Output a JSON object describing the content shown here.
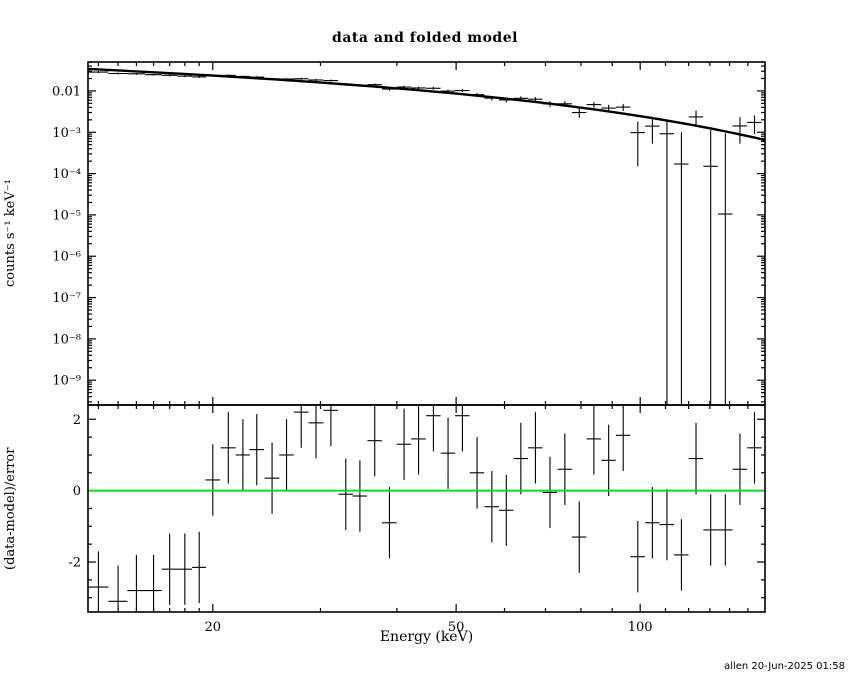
{
  "title": "data and folded model",
  "footer": "allen 20-Jun-2025 01:58",
  "x_axis_label": "Energy (keV)",
  "spectrum_axis_label": "counts s⁻¹ keV⁻¹",
  "residual_axis_label": "(data-model)/error",
  "colors": {
    "background": "#ffffff",
    "foreground": "#000000",
    "model_line": "#000000",
    "zero_line": "#00e020"
  },
  "chart_data": {
    "type": "scatter",
    "title": "data and folded model",
    "xlabel": "Energy (keV)",
    "x_scale": "log",
    "x_range": [
      12.5,
      160
    ],
    "x_major_ticks": [
      {
        "value": 20,
        "label": "20"
      },
      {
        "value": 50,
        "label": "50"
      },
      {
        "value": 100,
        "label": "100"
      }
    ],
    "x_minor_ticks": [
      13,
      14,
      15,
      16,
      17,
      18,
      19,
      30,
      40,
      60,
      70,
      80,
      90,
      110,
      120,
      130,
      140,
      150
    ],
    "energy": [
      13.0,
      14.0,
      15.0,
      16.0,
      17.0,
      18.0,
      19.0,
      20.0,
      21.2,
      22.4,
      23.6,
      25.0,
      26.4,
      27.9,
      29.5,
      31.2,
      33.0,
      34.8,
      36.8,
      38.9,
      41.1,
      43.4,
      45.9,
      48.5,
      51.2,
      54.1,
      57.2,
      60.4,
      63.8,
      67.4,
      71.2,
      75.3,
      79.5,
      84.0,
      88.8,
      93.8,
      99.1,
      104.7,
      110.6,
      116.8,
      123.4,
      130.4,
      137.8,
      145.6,
      153.8
    ],
    "energy_halfwidth": [
      0.5,
      0.5,
      0.5,
      0.5,
      0.5,
      0.5,
      0.5,
      0.55,
      0.6,
      0.6,
      0.65,
      0.7,
      0.73,
      0.77,
      0.82,
      0.86,
      0.9,
      0.95,
      1.0,
      1.07,
      1.12,
      1.19,
      1.25,
      1.32,
      1.4,
      1.47,
      1.55,
      1.64,
      1.74,
      1.83,
      1.94,
      2.05,
      2.16,
      2.28,
      2.41,
      2.55,
      2.69,
      2.84,
      3.0,
      3.17,
      3.35,
      3.54,
      3.74,
      3.95,
      4.17
    ],
    "spectrum_panel": {
      "ylabel": "counts s⁻¹ keV⁻¹",
      "y_scale": "log",
      "y_range_exp": [
        -9.6,
        -1.3
      ],
      "y_ticks": [
        {
          "value": 0.01,
          "label": "0.01"
        },
        {
          "value": 0.001,
          "label": "10⁻³"
        },
        {
          "value": 0.0001,
          "label": "10⁻⁴"
        },
        {
          "value": 1e-05,
          "label": "10⁻⁵"
        },
        {
          "value": 1e-06,
          "label": "10⁻⁶"
        },
        {
          "value": 1e-07,
          "label": "10⁻⁷"
        },
        {
          "value": 1e-08,
          "label": "10⁻⁸"
        },
        {
          "value": 1e-09,
          "label": "10⁻⁹"
        }
      ],
      "counts": [
        0.0286,
        0.0264,
        0.0259,
        0.0247,
        0.0239,
        0.0228,
        0.0219,
        0.0238,
        0.0238,
        0.0224,
        0.0216,
        0.0196,
        0.0194,
        0.0197,
        0.0184,
        0.0178,
        0.0143,
        0.0135,
        0.0142,
        0.0111,
        0.0124,
        0.0118,
        0.0116,
        0.00992,
        0.0102,
        0.0081,
        0.00669,
        0.00605,
        0.00662,
        0.00631,
        0.00486,
        0.00488,
        0.003,
        0.00467,
        0.00384,
        0.00406,
        0.00098,
        0.00141,
        0.00092,
        0.00017,
        0.00235,
        0.00015,
        1.05e-05,
        0.00142,
        0.00173
      ],
      "counts_err": [
        0.00165,
        0.00156,
        0.00134,
        0.00127,
        0.00134,
        0.00128,
        0.00123,
        0.00117,
        0.00123,
        0.00117,
        0.00121,
        0.00115,
        0.00118,
        0.00112,
        0.00114,
        0.00107,
        0.00108,
        0.00102,
        0.00102,
        0.00096,
        0.00095,
        0.00094,
        0.00092,
        0.0009,
        0.00087,
        0.00085,
        0.00081,
        0.00078,
        0.00077,
        0.00076,
        0.00074,
        0.00075,
        0.00076,
        0.00075,
        0.00077,
        0.00079,
        0.00083,
        0.00088,
        0.00106,
        0.00084,
        0.00101,
        0.00099,
        0.00094,
        0.00089,
        0.00082
      ],
      "model_x": [
        12.5,
        13.0,
        14.0,
        15.0,
        16.0,
        17.0,
        18.0,
        19.0,
        20.0,
        21.2,
        22.4,
        23.6,
        25.0,
        26.4,
        27.9,
        29.5,
        31.2,
        33.0,
        34.8,
        36.8,
        38.9,
        41.1,
        43.4,
        45.9,
        48.5,
        51.2,
        54.1,
        57.2,
        60.4,
        63.8,
        67.4,
        71.2,
        75.3,
        79.5,
        84.0,
        88.8,
        93.8,
        99.1,
        104.7,
        110.6,
        116.8,
        123.4,
        130.4,
        137.8,
        145.6,
        153.8,
        160.0
      ],
      "model_y": [
        0.034,
        0.0331,
        0.0313,
        0.0297,
        0.0282,
        0.0269,
        0.0257,
        0.0245,
        0.0235,
        0.0223,
        0.0212,
        0.0202,
        0.0192,
        0.0182,
        0.0172,
        0.0163,
        0.0153,
        0.0144,
        0.0136,
        0.0128,
        0.0119,
        0.0112,
        0.0104,
        0.00968,
        0.00898,
        0.00832,
        0.00768,
        0.00706,
        0.00648,
        0.00593,
        0.0054,
        0.0049,
        0.00443,
        0.00399,
        0.00358,
        0.00319,
        0.00283,
        0.0025,
        0.0022,
        0.00192,
        0.00167,
        0.00144,
        0.00124,
        0.00105,
        0.000886,
        0.000744,
        0.000651
      ]
    },
    "residual_panel": {
      "ylabel": "(data-model)/error",
      "y_scale": "linear",
      "y_range": [
        -3.4,
        2.4
      ],
      "y_ticks": [
        {
          "value": -2,
          "label": "-2"
        },
        {
          "value": 0,
          "label": "0"
        },
        {
          "value": 2,
          "label": "2"
        }
      ],
      "zero_line": 0,
      "values": [
        -2.7,
        -3.1,
        -2.8,
        -2.8,
        -2.2,
        -2.2,
        -2.15,
        0.3,
        1.2,
        1.0,
        1.15,
        0.35,
        1.0,
        2.2,
        1.9,
        2.25,
        -0.1,
        -0.15,
        1.4,
        -0.9,
        1.3,
        1.45,
        2.1,
        1.05,
        2.1,
        0.5,
        -0.45,
        -0.55,
        0.9,
        1.2,
        -0.05,
        0.6,
        -1.3,
        1.45,
        0.85,
        1.55,
        -1.85,
        -0.9,
        -0.95,
        -1.8,
        0.9,
        -1.1,
        -1.1,
        0.6,
        1.2
      ],
      "errors": 1.0
    }
  }
}
